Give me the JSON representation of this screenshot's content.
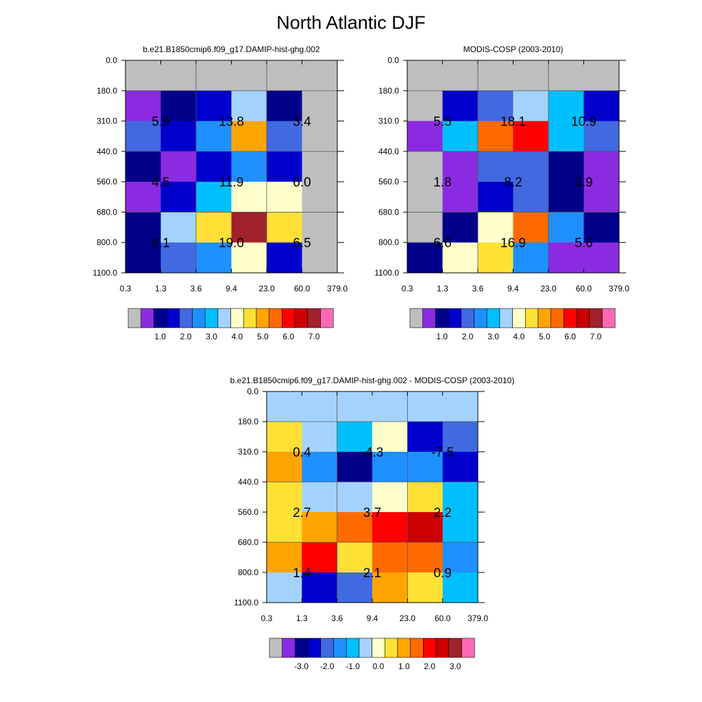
{
  "title": "North Atlantic DJF",
  "palettes": {
    "absolute": [
      "#bebebe",
      "#8a2be2",
      "#00008b",
      "#0000cd",
      "#4169e1",
      "#1e90ff",
      "#00bfff",
      "#a4d3ff",
      "#ffffcc",
      "#ffe135",
      "#ffa500",
      "#ff6a00",
      "#ff0000",
      "#cd0000",
      "#a0222a",
      "#ff69b4"
    ],
    "difference": [
      "#bebebe",
      "#8a2be2",
      "#00008b",
      "#0000cd",
      "#4169e1",
      "#1e90ff",
      "#00bfff",
      "#a4d3ff",
      "#ffffcc",
      "#ffe135",
      "#ffa500",
      "#ff6a00",
      "#ff0000",
      "#cd0000",
      "#a0222a",
      "#ff69b4"
    ]
  },
  "chart_data": [
    {
      "type": "heatmap",
      "title": "b.e21.B1850cmip6.f09_g17.DAMIP-hist-ghg.002",
      "x_ticks": [
        "0.3",
        "1.3",
        "3.6",
        "9.4",
        "23.0",
        "60.0",
        "379.0"
      ],
      "y_ticks": [
        "0.0",
        "180.0",
        "310.0",
        "440.0",
        "560.0",
        "680.0",
        "800.0",
        "1100.0"
      ],
      "cell_colors": [
        [
          "#bebebe",
          "#bebebe",
          "#bebebe",
          "#bebebe",
          "#bebebe",
          "#bebebe"
        ],
        [
          "#8a2be2",
          "#00008b",
          "#0000cd",
          "#a4d3ff",
          "#00008b",
          "#bebebe"
        ],
        [
          "#4169e1",
          "#0000cd",
          "#1e90ff",
          "#ffa500",
          "#4169e1",
          "#bebebe"
        ],
        [
          "#00008b",
          "#8a2be2",
          "#0000cd",
          "#1e90ff",
          "#0000cd",
          "#bebebe"
        ],
        [
          "#8a2be2",
          "#0000cd",
          "#00bfff",
          "#ffffcc",
          "#ffffcc",
          "#bebebe"
        ],
        [
          "#00008b",
          "#a4d3ff",
          "#ffe135",
          "#a0222a",
          "#ffe135",
          "#bebebe"
        ],
        [
          "#00008b",
          "#4169e1",
          "#1e90ff",
          "#ffffcc",
          "#0000cd",
          "#bebebe"
        ]
      ],
      "box_values": [
        [
          "5.9",
          "13.8",
          "3.4"
        ],
        [
          "4.5",
          "11.9",
          "6.0"
        ],
        [
          "8.1",
          "19.0",
          "6.5"
        ]
      ],
      "colorbar_labels": [
        "1.0",
        "2.0",
        "3.0",
        "4.0",
        "5.0",
        "6.0",
        "7.0"
      ],
      "palette": "absolute"
    },
    {
      "type": "heatmap",
      "title": "MODIS-COSP (2003-2010)",
      "x_ticks": [
        "0.3",
        "1.3",
        "3.6",
        "9.4",
        "23.0",
        "60.0",
        "379.0"
      ],
      "y_ticks": [
        "0.0",
        "180.0",
        "310.0",
        "440.0",
        "560.0",
        "680.0",
        "800.0",
        "1100.0"
      ],
      "cell_colors": [
        [
          "#bebebe",
          "#bebebe",
          "#bebebe",
          "#bebebe",
          "#bebebe",
          "#bebebe"
        ],
        [
          "#bebebe",
          "#0000cd",
          "#4169e1",
          "#a4d3ff",
          "#00bfff",
          "#0000cd"
        ],
        [
          "#8a2be2",
          "#00bfff",
          "#ff6a00",
          "#ff0000",
          "#00bfff",
          "#4169e1"
        ],
        [
          "#bebebe",
          "#8a2be2",
          "#4169e1",
          "#4169e1",
          "#00008b",
          "#8a2be2"
        ],
        [
          "#bebebe",
          "#8a2be2",
          "#0000cd",
          "#4169e1",
          "#00008b",
          "#8a2be2"
        ],
        [
          "#bebebe",
          "#00008b",
          "#ffffcc",
          "#ff6a00",
          "#1e90ff",
          "#00008b"
        ],
        [
          "#00008b",
          "#ffffcc",
          "#ffe135",
          "#1e90ff",
          "#8a2be2",
          "#8a2be2"
        ]
      ],
      "box_values": [
        [
          "5.5",
          "18.1",
          "10.9"
        ],
        [
          "1.8",
          "8.2",
          "3.9"
        ],
        [
          "6.6",
          "16.9",
          "5.6"
        ]
      ],
      "colorbar_labels": [
        "1.0",
        "2.0",
        "3.0",
        "4.0",
        "5.0",
        "6.0",
        "7.0"
      ],
      "palette": "absolute"
    },
    {
      "type": "heatmap",
      "title": "b.e21.B1850cmip6.f09_g17.DAMIP-hist-ghg.002 - MODIS-COSP (2003-2010)",
      "x_ticks": [
        "0.3",
        "1.3",
        "3.6",
        "9.4",
        "23.0",
        "60.0",
        "379.0"
      ],
      "y_ticks": [
        "0.0",
        "180.0",
        "310.0",
        "440.0",
        "560.0",
        "680.0",
        "800.0",
        "1100.0"
      ],
      "cell_colors": [
        [
          "#a4d3ff",
          "#a4d3ff",
          "#a4d3ff",
          "#a4d3ff",
          "#a4d3ff",
          "#a4d3ff"
        ],
        [
          "#ffe135",
          "#a4d3ff",
          "#00bfff",
          "#ffffcc",
          "#0000cd",
          "#4169e1"
        ],
        [
          "#ffa500",
          "#1e90ff",
          "#00008b",
          "#1e90ff",
          "#1e90ff",
          "#0000cd"
        ],
        [
          "#ffe135",
          "#a4d3ff",
          "#a4d3ff",
          "#ffffcc",
          "#ffe135",
          "#00bfff"
        ],
        [
          "#ffe135",
          "#ffa500",
          "#ff6a00",
          "#ff0000",
          "#cd0000",
          "#00bfff"
        ],
        [
          "#ffa500",
          "#ff0000",
          "#ffe135",
          "#ff6a00",
          "#ff6a00",
          "#1e90ff"
        ],
        [
          "#a4d3ff",
          "#0000cd",
          "#4169e1",
          "#ffa500",
          "#ffe135",
          "#00bfff"
        ]
      ],
      "box_values": [
        [
          "0.4",
          "-4.3",
          "-7.5"
        ],
        [
          "2.7",
          "3.7",
          "2.2"
        ],
        [
          "1.4",
          "2.1",
          "0.9"
        ]
      ],
      "colorbar_labels": [
        "-3.0",
        "-2.0",
        "-1.0",
        "0.0",
        "1.0",
        "2.0",
        "3.0"
      ],
      "palette": "difference"
    }
  ]
}
